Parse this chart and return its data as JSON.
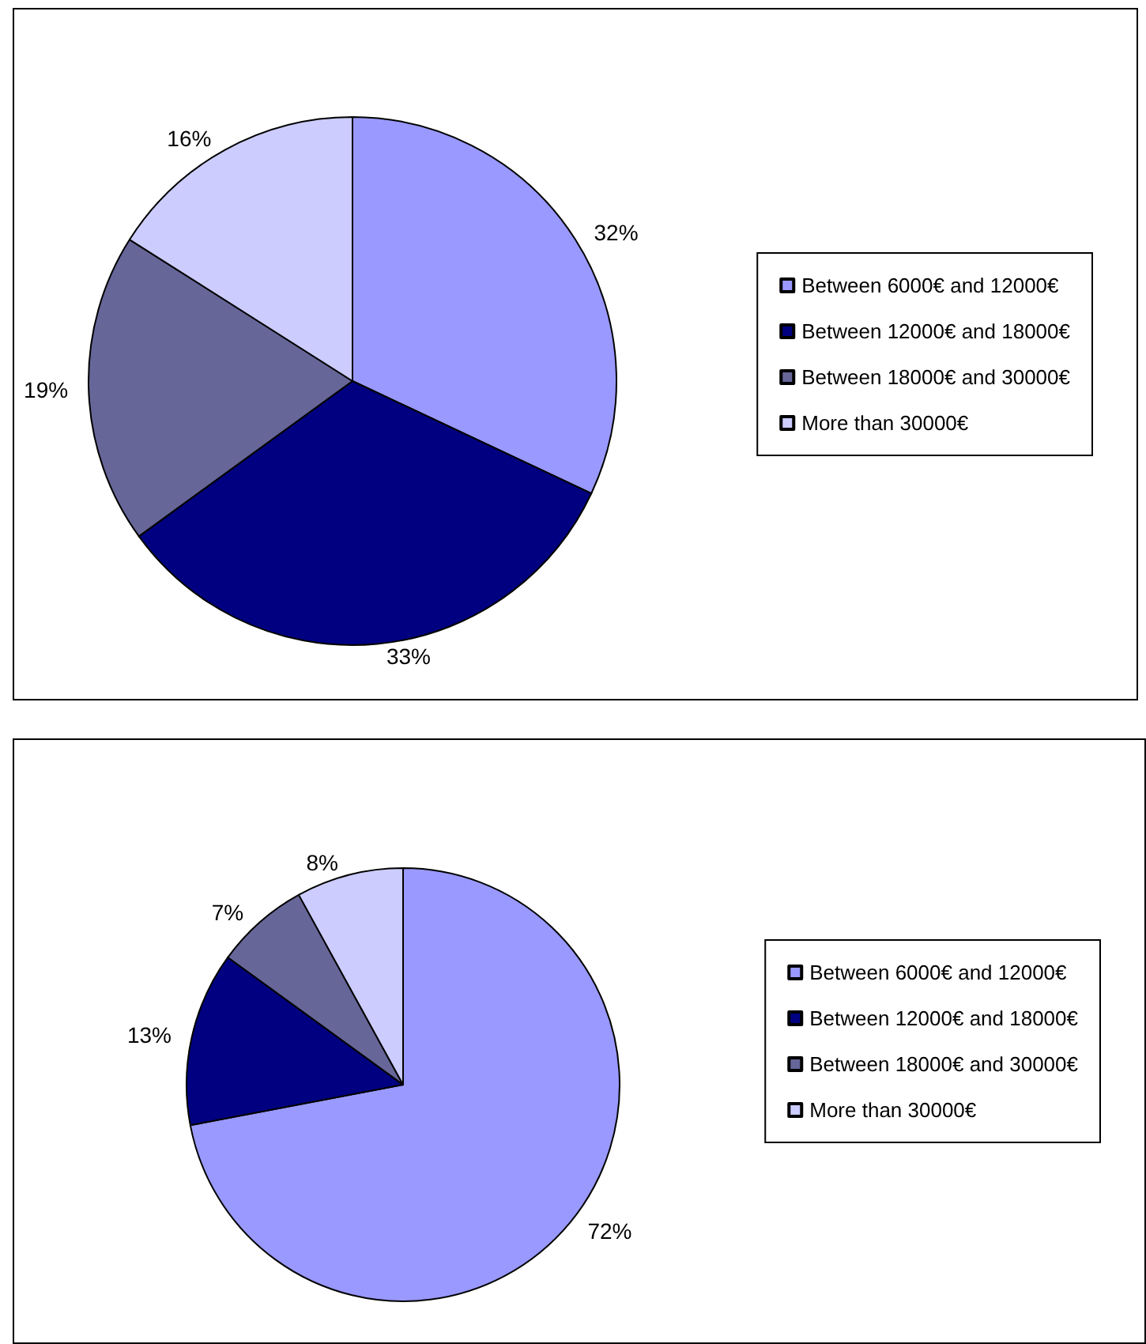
{
  "chart_data": [
    {
      "type": "pie",
      "categories": [
        "Between 6000€ and 12000€",
        "Between 12000€ and 18000€",
        "Between 18000€ and 30000€",
        "More than 30000€"
      ],
      "values": [
        32,
        33,
        19,
        16
      ],
      "value_labels": [
        "32%",
        "33%",
        "19%",
        "16%"
      ],
      "colors": [
        "#9999ff",
        "#000080",
        "#666699",
        "#ccccff"
      ],
      "legend": "right"
    },
    {
      "type": "pie",
      "categories": [
        "Between 6000€ and 12000€",
        "Between 12000€ and 18000€",
        "Between 18000€ and 30000€",
        "More than 30000€"
      ],
      "values": [
        72,
        13,
        7,
        8
      ],
      "value_labels": [
        "72%",
        "13%",
        "7%",
        "8%"
      ],
      "colors": [
        "#9999ff",
        "#000080",
        "#666699",
        "#ccccff"
      ],
      "legend": "right"
    }
  ]
}
